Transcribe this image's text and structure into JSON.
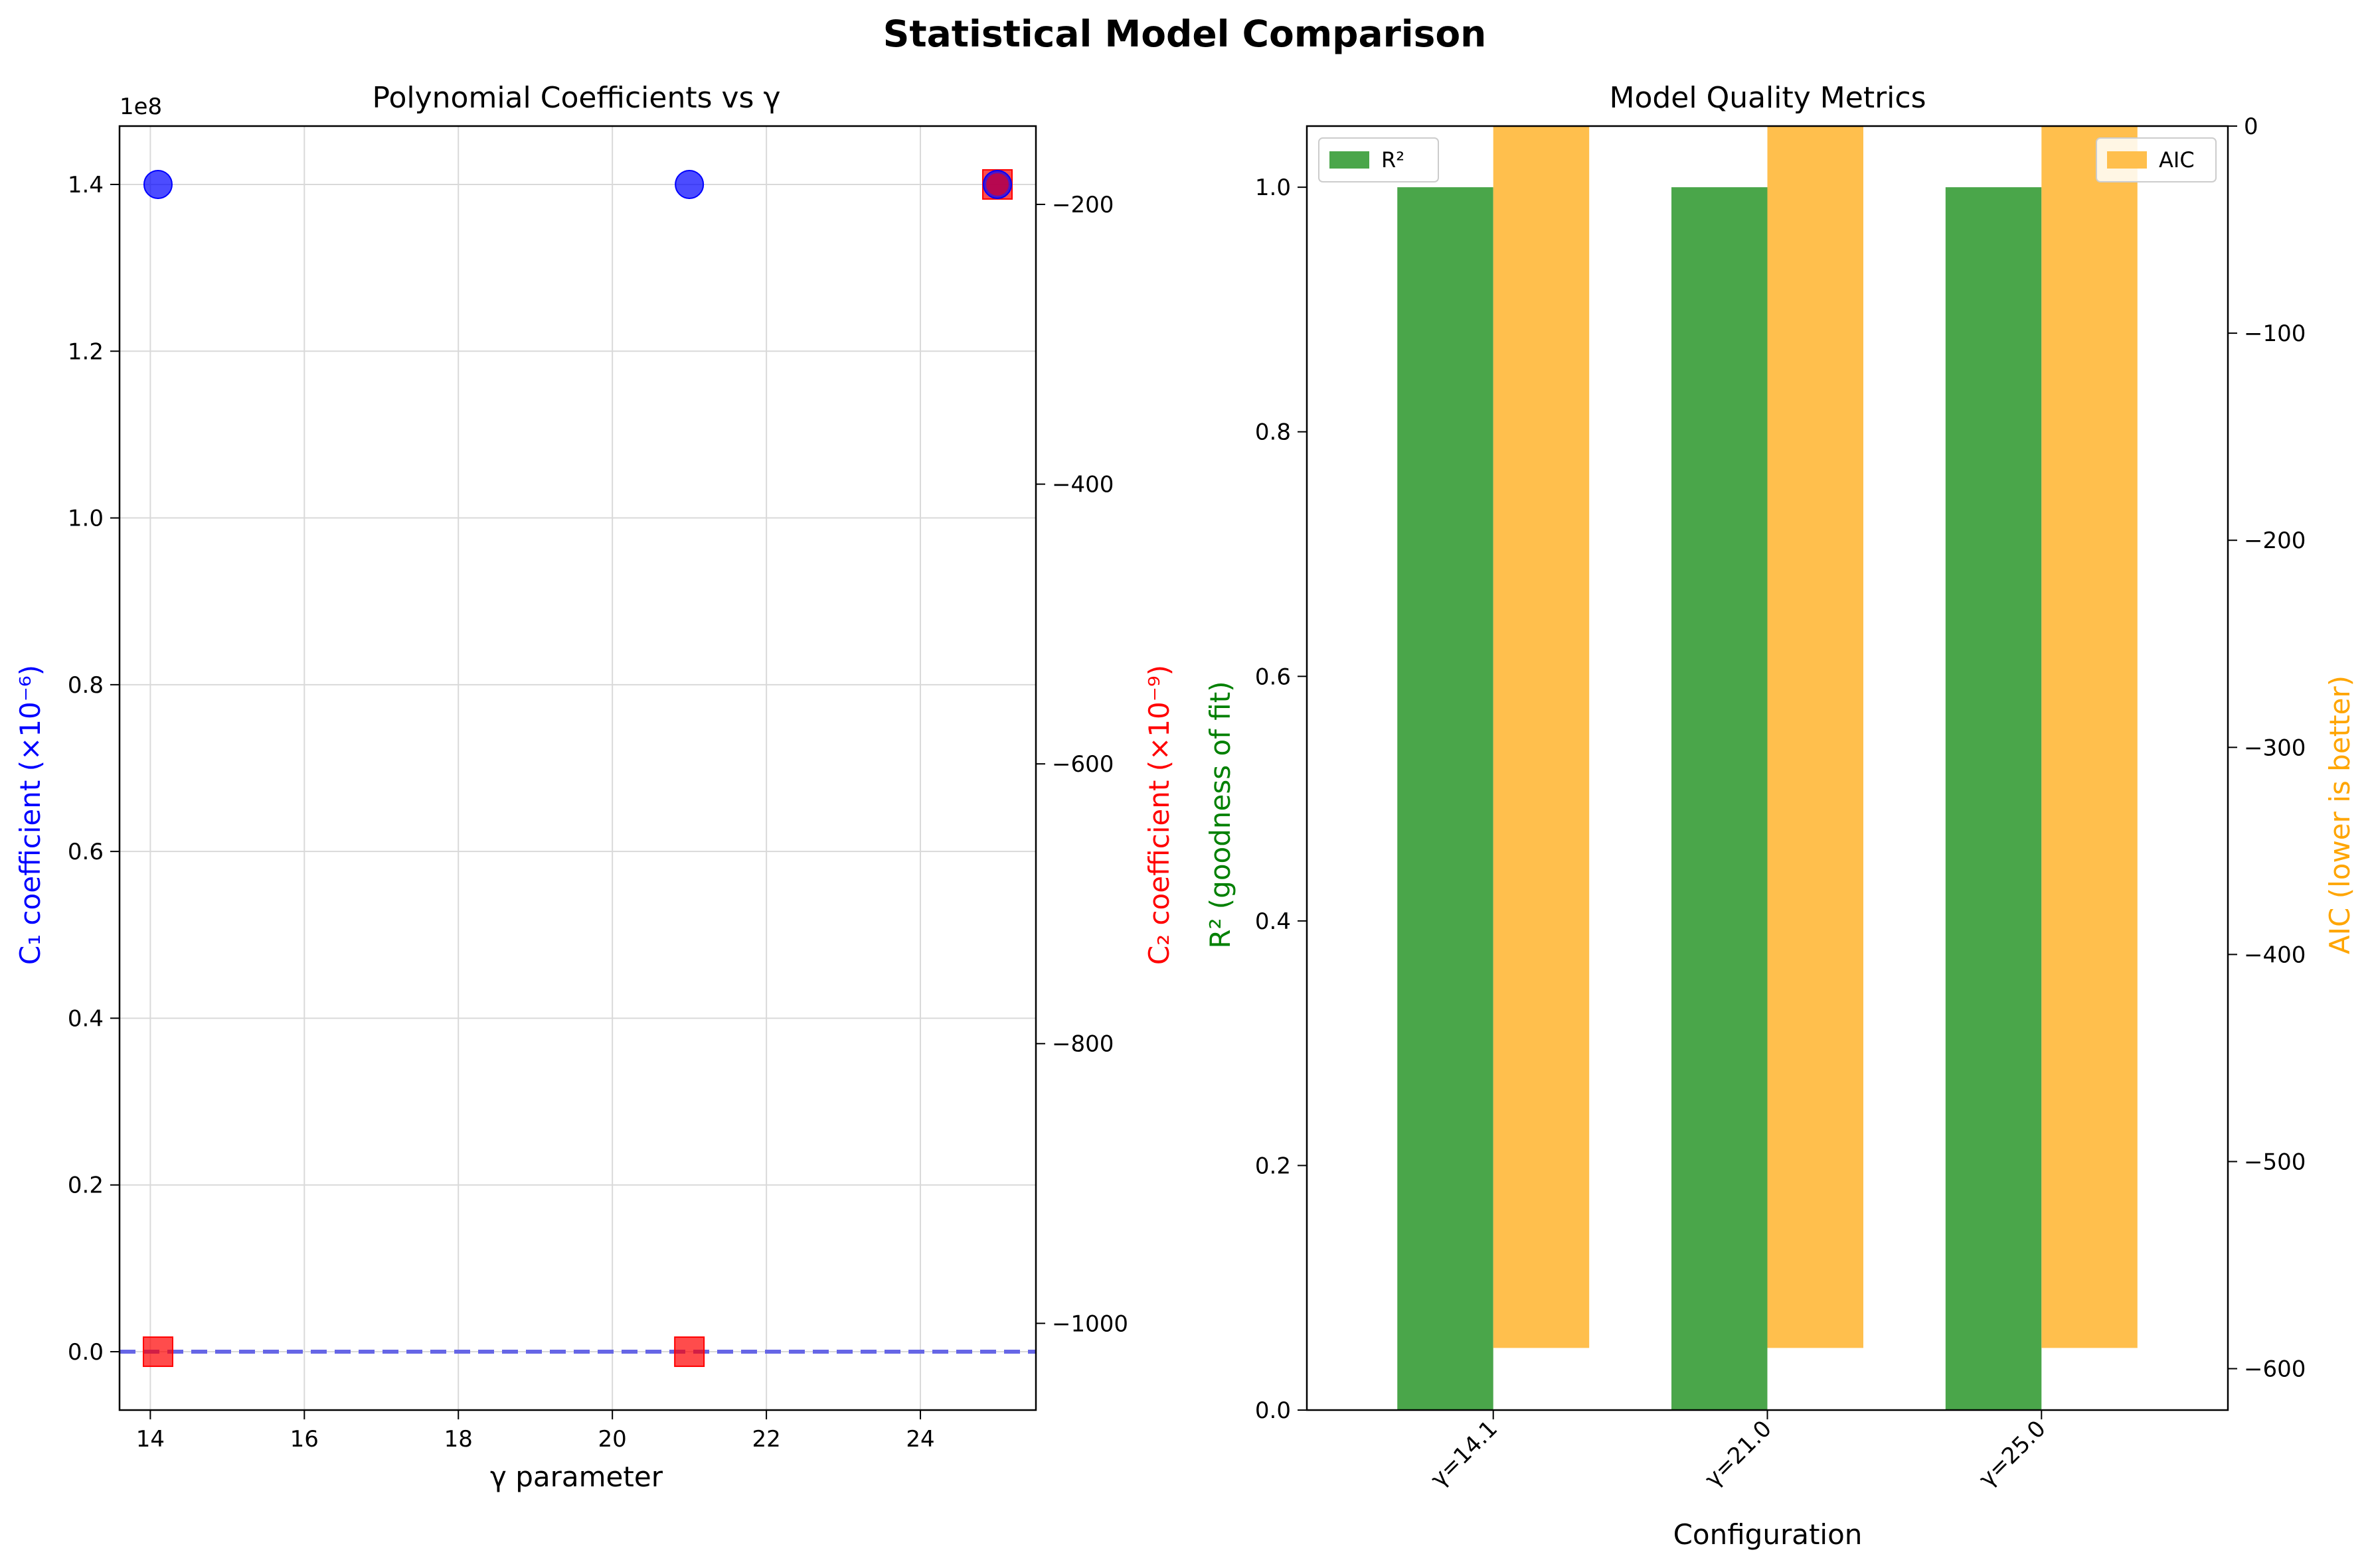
{
  "figure": {
    "suptitle": "Statistical Model Comparison"
  },
  "colors": {
    "c1": "#0000ff",
    "c2": "#ff0000",
    "r2": "#008000",
    "aic": "#ffa500",
    "r2_bar": "#4aa64a",
    "aic_bar": "#ffbf4d",
    "grid": "#d9d9d9",
    "axis": "#000000"
  },
  "chart_data": [
    {
      "type": "scatter",
      "title": "Polynomial Coefficients vs γ",
      "xlabel": "γ parameter",
      "ylabel": "C₁ coefficient (×10⁻⁶)",
      "ylabel_right": "C₂ coefficient (×10⁻⁹)",
      "offset_text": "1e8",
      "xlim": [
        13.6,
        25.5
      ],
      "ylim": [
        -0.07,
        1.47
      ],
      "ylim_right": [
        -1062,
        -144
      ],
      "grid": true,
      "xticks": [
        14,
        16,
        18,
        20,
        22,
        24
      ],
      "xtick_labels": [
        "14",
        "16",
        "18",
        "20",
        "22",
        "24"
      ],
      "yticks": [
        0.0,
        0.2,
        0.4,
        0.6,
        0.8,
        1.0,
        1.2,
        1.4
      ],
      "ytick_labels": [
        "0.0",
        "0.2",
        "0.4",
        "0.6",
        "0.8",
        "1.0",
        "1.2",
        "1.4"
      ],
      "yticks_right": [
        -200,
        -400,
        -600,
        -800,
        -1000
      ],
      "ytick_labels_right": [
        "−200",
        "−400",
        "−600",
        "−800",
        "−1000"
      ],
      "series": [
        {
          "axis": "left",
          "marker": "circle",
          "color": "#0000ff",
          "points": [
            [
              14.1,
              1.4
            ],
            [
              21.0,
              1.4
            ],
            [
              25.0,
              1.4
            ]
          ]
        },
        {
          "axis": "left",
          "marker": "square",
          "color": "#ff0000",
          "points": [
            [
              14.1,
              0.0
            ],
            [
              21.0,
              0.0
            ],
            [
              25.0,
              1.4
            ]
          ]
        },
        {
          "axis": "left",
          "marker": "dashed-line",
          "color": "#6666e6",
          "y": 0.0
        }
      ]
    },
    {
      "type": "bar",
      "title": "Model Quality Metrics",
      "xlabel": "Configuration",
      "ylabel": "R² (goodness of fit)",
      "ylabel_right": "AIC (lower is better)",
      "categories": [
        "γ=14.1",
        "γ=21.0",
        "γ=25.0"
      ],
      "ylim": [
        0,
        1.05
      ],
      "ylim_right": [
        -620,
        0
      ],
      "yticks": [
        0.0,
        0.2,
        0.4,
        0.6,
        0.8,
        1.0
      ],
      "ytick_labels": [
        "0.0",
        "0.2",
        "0.4",
        "0.6",
        "0.8",
        "1.0"
      ],
      "yticks_right": [
        0,
        -100,
        -200,
        -300,
        -400,
        -500,
        -600
      ],
      "ytick_labels_right": [
        "0",
        "−100",
        "−200",
        "−300",
        "−400",
        "−500",
        "−600"
      ],
      "series": [
        {
          "name": "R²",
          "axis": "left",
          "color": "#4aa64a",
          "values": [
            1.0,
            1.0,
            1.0
          ]
        },
        {
          "name": "AIC",
          "axis": "right",
          "color": "#ffbf4d",
          "values": [
            -590,
            -590,
            -590
          ]
        }
      ],
      "legend_left": "upper-left",
      "legend_right": "upper-right"
    }
  ]
}
